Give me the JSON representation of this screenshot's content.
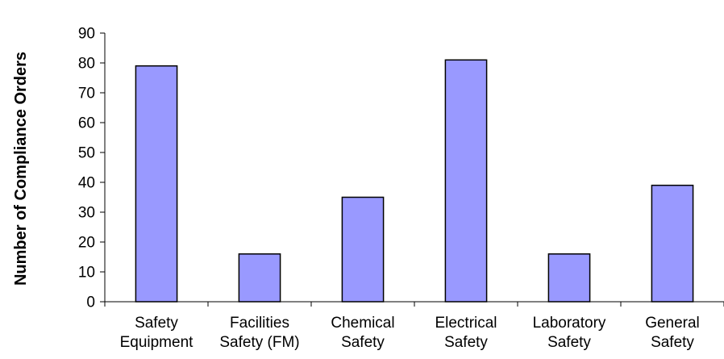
{
  "chart_data": {
    "type": "bar",
    "title": "",
    "xlabel": "",
    "ylabel": "Number of Compliance Orders",
    "categories": [
      [
        "Safety",
        "Equipment"
      ],
      [
        "Facilities",
        "Safety (FM)"
      ],
      [
        "Chemical",
        "Safety"
      ],
      [
        "Electrical",
        "Safety"
      ],
      [
        "Laboratory",
        "Safety"
      ],
      [
        "General",
        "Safety"
      ]
    ],
    "values": [
      79,
      16,
      35,
      81,
      16,
      39
    ],
    "ylim": [
      0,
      90
    ],
    "yticks": [
      0,
      10,
      20,
      30,
      40,
      50,
      60,
      70,
      80,
      90
    ],
    "grid": false,
    "legend": "none",
    "colors": {
      "bar_fill": "#9999ff",
      "bar_stroke": "#000000",
      "axis": "#000000",
      "text": "#000000"
    }
  }
}
